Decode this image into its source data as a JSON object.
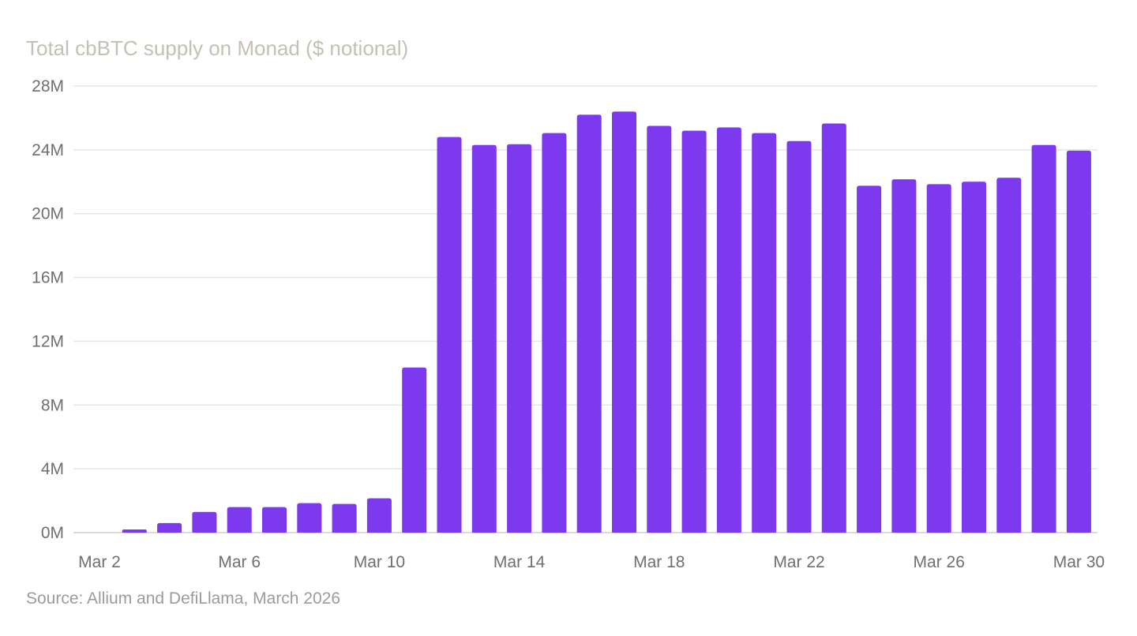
{
  "chart_data": {
    "type": "bar",
    "title": "Total cbBTC supply on Monad ($ notional)",
    "source": "Source: Allium and DefiLlama, March 2026",
    "xlabel": "",
    "ylabel": "",
    "categories": [
      "Mar 2",
      "Mar 3",
      "Mar 4",
      "Mar 5",
      "Mar 6",
      "Mar 7",
      "Mar 8",
      "Mar 9",
      "Mar 10",
      "Mar 11",
      "Mar 12",
      "Mar 13",
      "Mar 14",
      "Mar 15",
      "Mar 16",
      "Mar 17",
      "Mar 18",
      "Mar 19",
      "Mar 20",
      "Mar 21",
      "Mar 22",
      "Mar 23",
      "Mar 24",
      "Mar 25",
      "Mar 26",
      "Mar 27",
      "Mar 28",
      "Mar 29",
      "Mar 30"
    ],
    "values": [
      0,
      200000,
      600000,
      1300000,
      1600000,
      1600000,
      1850000,
      1800000,
      2150000,
      10350000,
      24800000,
      24300000,
      24350000,
      25050000,
      26200000,
      26400000,
      25500000,
      25200000,
      25400000,
      25050000,
      24550000,
      25650000,
      21750000,
      22150000,
      21850000,
      22000000,
      22250000,
      24300000,
      23950000
    ],
    "x_tick_labels": [
      "Mar 2",
      "Mar 6",
      "Mar 10",
      "Mar 14",
      "Mar 18",
      "Mar 22",
      "Mar 26",
      "Mar 30"
    ],
    "y_tick_labels": [
      "0M",
      "4M",
      "8M",
      "12M",
      "16M",
      "20M",
      "24M",
      "28M"
    ],
    "ylim": [
      0,
      28000000
    ],
    "grid": true,
    "legend": "none",
    "colors": {
      "bar": "#7c39ed",
      "grid": "#e6e6e6",
      "axis": "#cfcfcf",
      "title": "#c4c0b4",
      "tick": "#6f6f6f",
      "source": "#9b9b9b"
    }
  }
}
